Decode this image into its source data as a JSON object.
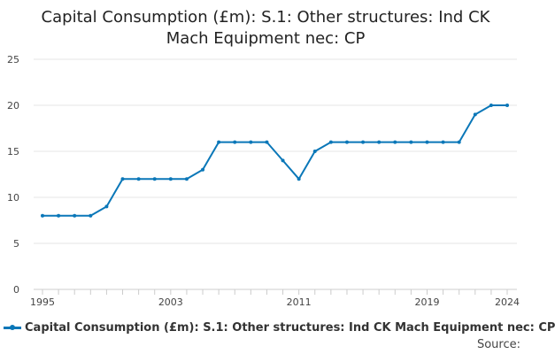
{
  "chart_data": {
    "type": "line",
    "title": "Capital Consumption (£m): S.1: Other structures: Ind CK Mach Equipment nec: CP",
    "title_lines": [
      "Capital Consumption (£m): S.1: Other structures: Ind CK",
      "Mach Equipment nec: CP"
    ],
    "xlabel": "",
    "ylabel": "",
    "x": [
      1995,
      1996,
      1997,
      1998,
      1999,
      2000,
      2001,
      2002,
      2003,
      2004,
      2005,
      2006,
      2007,
      2008,
      2009,
      2010,
      2011,
      2012,
      2013,
      2014,
      2015,
      2016,
      2017,
      2018,
      2019,
      2020,
      2021,
      2022,
      2023,
      2024
    ],
    "series": [
      {
        "name": "Capital Consumption (£m): S.1: Other structures: Ind CK Mach Equipment nec: CP",
        "values": [
          8,
          8,
          8,
          8,
          9,
          12,
          12,
          12,
          12,
          12,
          13,
          16,
          16,
          16,
          16,
          14,
          12,
          15,
          16,
          16,
          16,
          16,
          16,
          16,
          16,
          16,
          16,
          19,
          20,
          20
        ],
        "color": "#0a77b8"
      }
    ],
    "xlim": [
      1995,
      2024
    ],
    "ylim": [
      0,
      25
    ],
    "yticks": [
      0,
      5,
      10,
      15,
      20,
      25
    ],
    "xtick_labels": [
      1995,
      2003,
      2011,
      2019,
      2024
    ],
    "grid": "horizontal",
    "legend_position": "bottom"
  },
  "footer": {
    "source_label": "Source:"
  }
}
